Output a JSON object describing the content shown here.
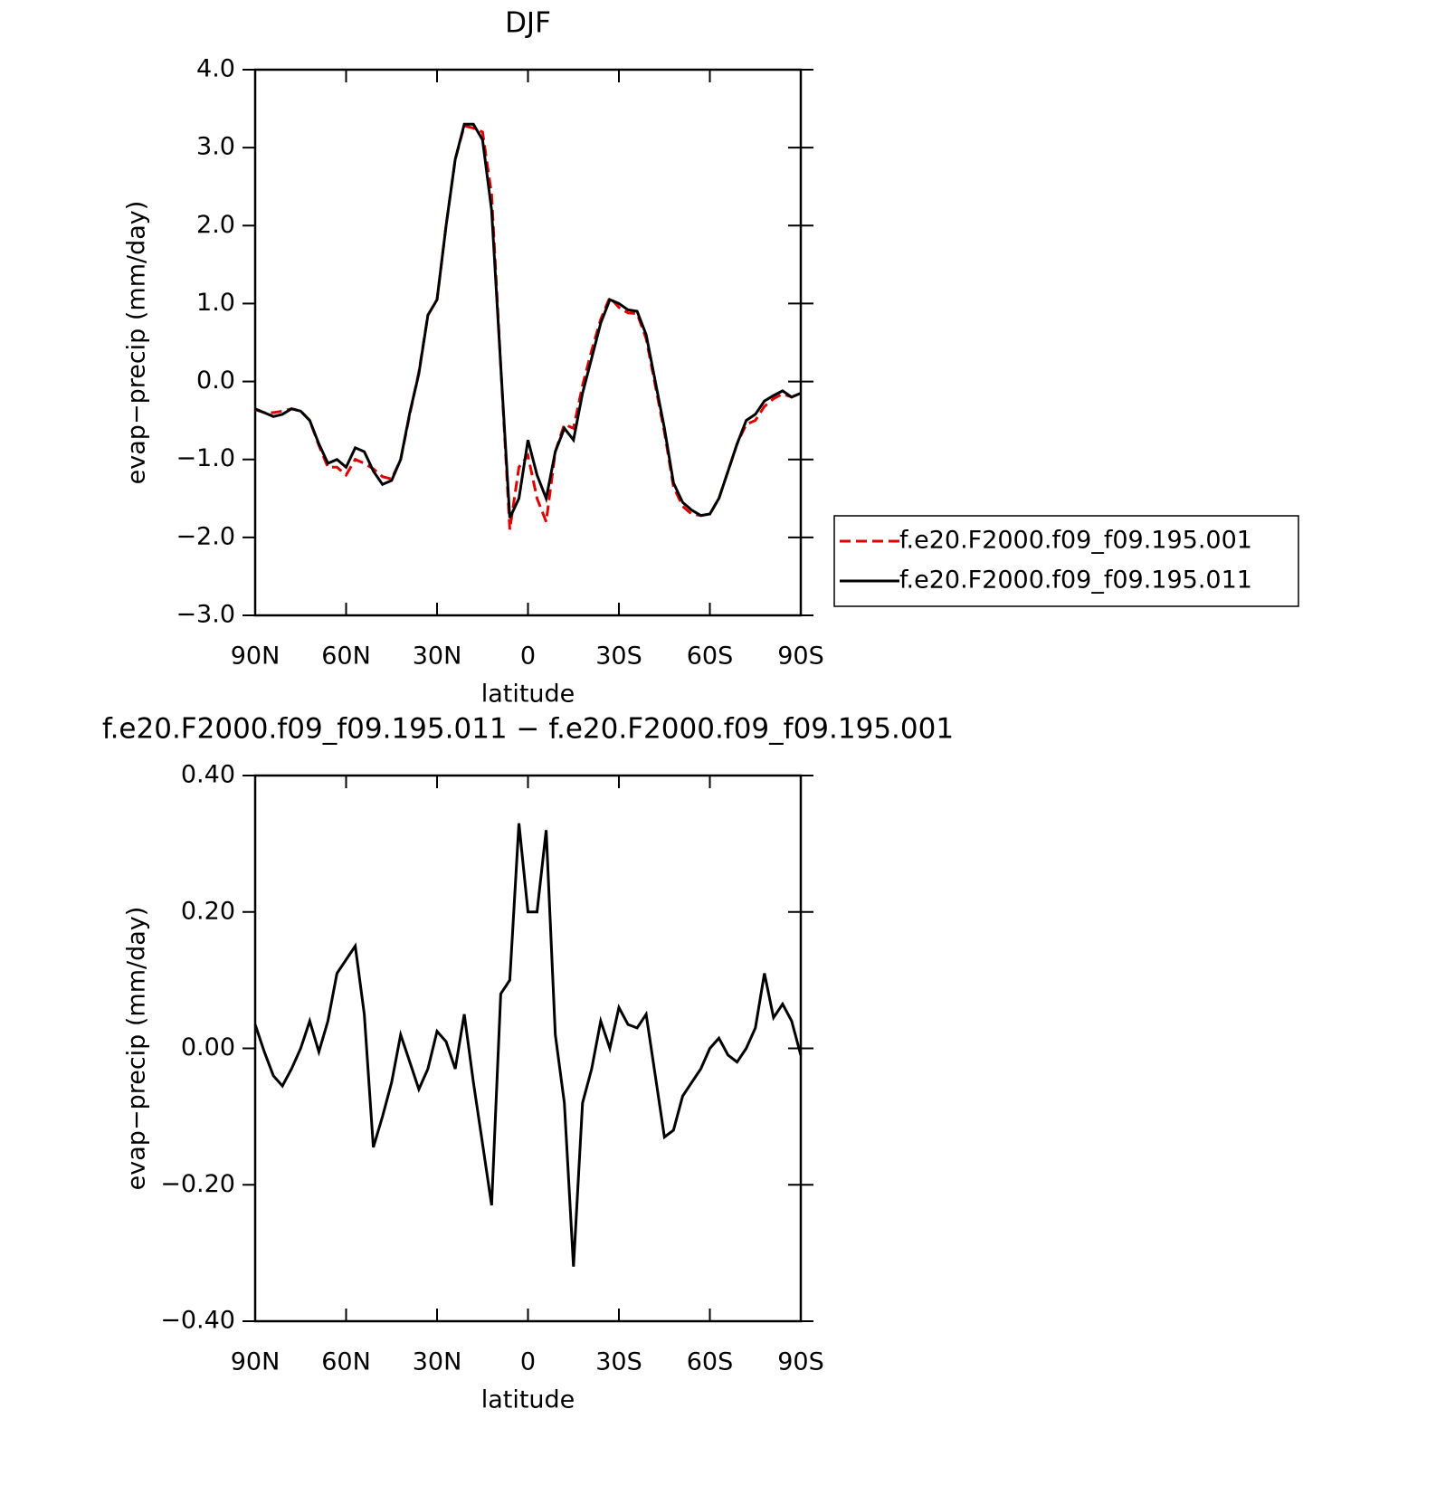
{
  "chart_data": [
    {
      "type": "line",
      "title": "DJF",
      "xlabel": "latitude",
      "ylabel": "evap−precip (mm/day)",
      "xlim": [
        90,
        -90
      ],
      "xticks": [
        {
          "value": 90,
          "label": "90N"
        },
        {
          "value": 60,
          "label": "60N"
        },
        {
          "value": 30,
          "label": "30N"
        },
        0,
        {
          "value": -30,
          "label": "30S"
        },
        {
          "value": -60,
          "label": "60S"
        },
        {
          "value": -90,
          "label": "90S"
        }
      ],
      "ylim": [
        -3,
        4
      ],
      "yticks": [
        {
          "value": 4,
          "label": "4.0"
        },
        {
          "value": 3,
          "label": "3.0"
        },
        {
          "value": 2,
          "label": "2.0"
        },
        {
          "value": 1,
          "label": "1.0"
        },
        {
          "value": 0,
          "label": "0.0"
        },
        {
          "value": -1,
          "label": "−1.0"
        },
        {
          "value": -2,
          "label": "−2.0"
        },
        {
          "value": -3,
          "label": "−3.0"
        }
      ],
      "legend": "right",
      "x": [
        90,
        87,
        84,
        81,
        78,
        75,
        72,
        69,
        66,
        63,
        60,
        57,
        54,
        51,
        48,
        45,
        42,
        39,
        36,
        33,
        30,
        27,
        24,
        21,
        18,
        15,
        12,
        9,
        6,
        3,
        0,
        -3,
        -6,
        -9,
        -12,
        -15,
        -18,
        -21,
        -24,
        -27,
        -30,
        -33,
        -36,
        -39,
        -42,
        -45,
        -48,
        -51,
        -54,
        -57,
        -60,
        -63,
        -66,
        -69,
        -72,
        -75,
        -78,
        -81,
        -84,
        -87,
        -90
      ],
      "series": [
        {
          "name": "f.e20.F2000.f09_f09.195.001",
          "color": "#e00000",
          "linestyle": "dashed",
          "values": [
            -0.36,
            -0.4,
            -0.4,
            -0.38,
            -0.35,
            -0.38,
            -0.5,
            -0.82,
            -1.1,
            -1.1,
            -1.2,
            -1.0,
            -1.05,
            -1.12,
            -1.22,
            -1.25,
            -1.0,
            -0.42,
            0.12,
            0.85,
            1.05,
            2.0,
            2.85,
            3.28,
            3.25,
            3.2,
            2.4,
            0.2,
            -1.9,
            -1.1,
            -0.95,
            -1.5,
            -1.8,
            -0.9,
            -0.55,
            -0.6,
            -0.05,
            0.4,
            0.8,
            1.08,
            0.95,
            0.88,
            0.87,
            0.55,
            -0.05,
            -0.65,
            -1.35,
            -1.6,
            -1.7,
            -1.72,
            -1.7,
            -1.5,
            -1.15,
            -0.8,
            -0.55,
            -0.5,
            -0.32,
            -0.22,
            -0.16,
            -0.2,
            -0.15
          ]
        },
        {
          "name": "f.e20.F2000.f09_f09.195.011",
          "color": "#000000",
          "linestyle": "solid",
          "values": [
            -0.35,
            -0.4,
            -0.45,
            -0.42,
            -0.35,
            -0.38,
            -0.5,
            -0.8,
            -1.05,
            -1.0,
            -1.1,
            -0.85,
            -0.9,
            -1.15,
            -1.32,
            -1.27,
            -1.0,
            -0.4,
            0.1,
            0.85,
            1.05,
            2.0,
            2.85,
            3.3,
            3.3,
            3.1,
            2.2,
            0.2,
            -1.75,
            -1.5,
            -0.75,
            -1.2,
            -1.5,
            -0.9,
            -0.6,
            -0.75,
            -0.15,
            0.3,
            0.75,
            1.05,
            1.0,
            0.92,
            0.9,
            0.6,
            0.0,
            -0.6,
            -1.3,
            -1.55,
            -1.65,
            -1.72,
            -1.7,
            -1.5,
            -1.15,
            -0.8,
            -0.5,
            -0.42,
            -0.25,
            -0.18,
            -0.12,
            -0.2,
            -0.15
          ]
        }
      ]
    },
    {
      "type": "line",
      "title": "f.e20.F2000.f09_f09.195.011 − f.e20.F2000.f09_f09.195.001",
      "xlabel": "latitude",
      "ylabel": "evap−precip (mm/day)",
      "xlim": [
        90,
        -90
      ],
      "xticks": [
        {
          "value": 90,
          "label": "90N"
        },
        {
          "value": 60,
          "label": "60N"
        },
        {
          "value": 30,
          "label": "30N"
        },
        0,
        {
          "value": -30,
          "label": "30S"
        },
        {
          "value": -60,
          "label": "60S"
        },
        {
          "value": -90,
          "label": "90S"
        }
      ],
      "ylim": [
        -0.4,
        0.4
      ],
      "yticks": [
        {
          "value": 0.4,
          "label": "0.40"
        },
        {
          "value": 0.2,
          "label": "0.20"
        },
        {
          "value": 0,
          "label": "0.00"
        },
        {
          "value": -0.2,
          "label": "−0.20"
        },
        {
          "value": -0.4,
          "label": "−0.40"
        }
      ],
      "x": [
        90,
        87,
        84,
        81,
        78,
        75,
        72,
        69,
        66,
        63,
        60,
        57,
        54,
        51,
        48,
        45,
        42,
        39,
        36,
        33,
        30,
        27,
        24,
        21,
        18,
        15,
        12,
        9,
        6,
        3,
        0,
        -3,
        -6,
        -9,
        -12,
        -15,
        -18,
        -21,
        -24,
        -27,
        -30,
        -33,
        -36,
        -39,
        -42,
        -45,
        -48,
        -51,
        -54,
        -57,
        -60,
        -63,
        -66,
        -69,
        -72,
        -75,
        -78,
        -81,
        -84,
        -87,
        -90
      ],
      "series": [
        {
          "color": "#000000",
          "linestyle": "solid",
          "values": [
            0.035,
            -0.005,
            -0.04,
            -0.055,
            -0.03,
            0.0,
            0.04,
            -0.005,
            0.04,
            0.11,
            0.13,
            0.15,
            0.05,
            -0.145,
            -0.1,
            -0.05,
            0.02,
            -0.02,
            -0.06,
            -0.03,
            0.025,
            0.01,
            -0.03,
            0.05,
            -0.05,
            -0.14,
            -0.23,
            0.08,
            0.1,
            0.33,
            0.2,
            0.2,
            0.32,
            0.02,
            -0.08,
            -0.32,
            -0.08,
            -0.03,
            0.04,
            0.0,
            0.06,
            0.035,
            0.03,
            0.05,
            -0.04,
            -0.13,
            -0.12,
            -0.07,
            -0.05,
            -0.03,
            0.0,
            0.015,
            -0.01,
            -0.02,
            0.0,
            0.03,
            0.11,
            0.045,
            0.065,
            0.04,
            -0.01
          ]
        }
      ]
    }
  ]
}
